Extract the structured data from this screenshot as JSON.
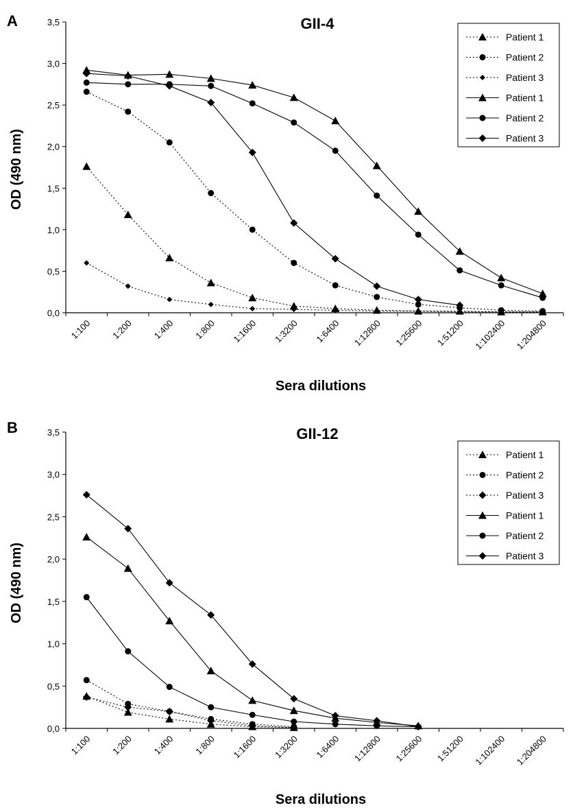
{
  "chart_data": [
    {
      "panel_label": "A",
      "type": "line",
      "title": "GII-4",
      "xlabel": "Sera dilutions",
      "ylabel": "OD (490 nm)",
      "ylim": [
        0,
        3.5
      ],
      "yticks": [
        "0,0",
        "0,5",
        "1,0",
        "1,5",
        "2,0",
        "2,5",
        "3,0",
        "3,5"
      ],
      "categories": [
        "1:100",
        "1:200",
        "1:400",
        "1:800",
        "1:1600",
        "1:3200",
        "1:6400",
        "1:12800",
        "1:25600",
        "1:51200",
        "1:102400",
        "1:204800"
      ],
      "legend_position": "top-right",
      "grid": false,
      "series": [
        {
          "name": "Patient 1",
          "line": "dotted",
          "marker": "triangle",
          "values": [
            1.76,
            1.18,
            0.66,
            0.36,
            0.18,
            0.08,
            0.05,
            0.03,
            0.02,
            0.02,
            0.01,
            0.01
          ]
        },
        {
          "name": "Patient 2",
          "line": "dotted",
          "marker": "circle",
          "values": [
            2.66,
            2.42,
            2.05,
            1.44,
            1.0,
            0.6,
            0.33,
            0.19,
            0.1,
            0.06,
            0.03,
            0.02
          ]
        },
        {
          "name": "Patient 3",
          "line": "dotted",
          "marker": "diamond-small",
          "values": [
            0.6,
            0.32,
            0.16,
            0.1,
            0.05,
            0.04,
            0.03,
            0.02,
            0.02,
            0.01,
            0.01,
            0.01
          ]
        },
        {
          "name": "Patient 1",
          "line": "solid",
          "marker": "triangle",
          "values": [
            2.92,
            2.86,
            2.87,
            2.82,
            2.74,
            2.59,
            2.31,
            1.77,
            1.22,
            0.74,
            0.42,
            0.23
          ]
        },
        {
          "name": "Patient 2",
          "line": "solid",
          "marker": "circle",
          "values": [
            2.77,
            2.75,
            2.75,
            2.73,
            2.52,
            2.29,
            1.95,
            1.41,
            0.94,
            0.51,
            0.33,
            0.18
          ]
        },
        {
          "name": "Patient 3",
          "line": "solid",
          "marker": "diamond",
          "values": [
            2.88,
            2.85,
            2.73,
            2.53,
            1.93,
            1.08,
            0.65,
            0.32,
            0.16,
            0.09,
            null,
            null
          ]
        }
      ]
    },
    {
      "panel_label": "B",
      "type": "line",
      "title": "GII-12",
      "xlabel": "Sera dilutions",
      "ylabel": "OD (490 nm)",
      "ylim": [
        0,
        3.5
      ],
      "yticks": [
        "0,0",
        "0,5",
        "1,0",
        "1,5",
        "2,0",
        "2,5",
        "3,0",
        "3,5"
      ],
      "categories": [
        "1:100",
        "1:200",
        "1:400",
        "1:800",
        "1:1600",
        "1:3200",
        "1:6400",
        "1:12800",
        "1:25600",
        "1:51200",
        "1:102400",
        "1:204800"
      ],
      "legend_position": "top-right",
      "grid": false,
      "series": [
        {
          "name": "Patient 1",
          "line": "dotted",
          "marker": "triangle",
          "values": [
            0.38,
            0.19,
            0.11,
            0.05,
            0.02,
            0.01,
            null,
            null,
            null,
            null,
            null,
            null
          ]
        },
        {
          "name": "Patient 2",
          "line": "dotted",
          "marker": "circle",
          "values": [
            0.57,
            0.29,
            0.2,
            0.11,
            0.05,
            0.02,
            null,
            null,
            null,
            null,
            null,
            null
          ]
        },
        {
          "name": "Patient 3",
          "line": "dotted",
          "marker": "diamond",
          "values": [
            0.37,
            0.25,
            0.2,
            0.09,
            0.03,
            0.01,
            null,
            null,
            null,
            null,
            null,
            null
          ]
        },
        {
          "name": "Patient 1",
          "line": "solid",
          "marker": "triangle",
          "values": [
            2.26,
            1.89,
            1.27,
            0.68,
            0.33,
            0.21,
            0.12,
            0.07,
            0.03,
            null,
            null,
            null
          ]
        },
        {
          "name": "Patient 2",
          "line": "solid",
          "marker": "circle",
          "values": [
            1.55,
            0.91,
            0.49,
            0.25,
            0.16,
            0.08,
            0.05,
            0.03,
            0.02,
            null,
            null,
            null
          ]
        },
        {
          "name": "Patient 3",
          "line": "solid",
          "marker": "diamond",
          "values": [
            2.76,
            2.36,
            1.72,
            1.34,
            0.76,
            0.35,
            0.15,
            0.09,
            0.02,
            null,
            null,
            null
          ]
        }
      ]
    }
  ]
}
